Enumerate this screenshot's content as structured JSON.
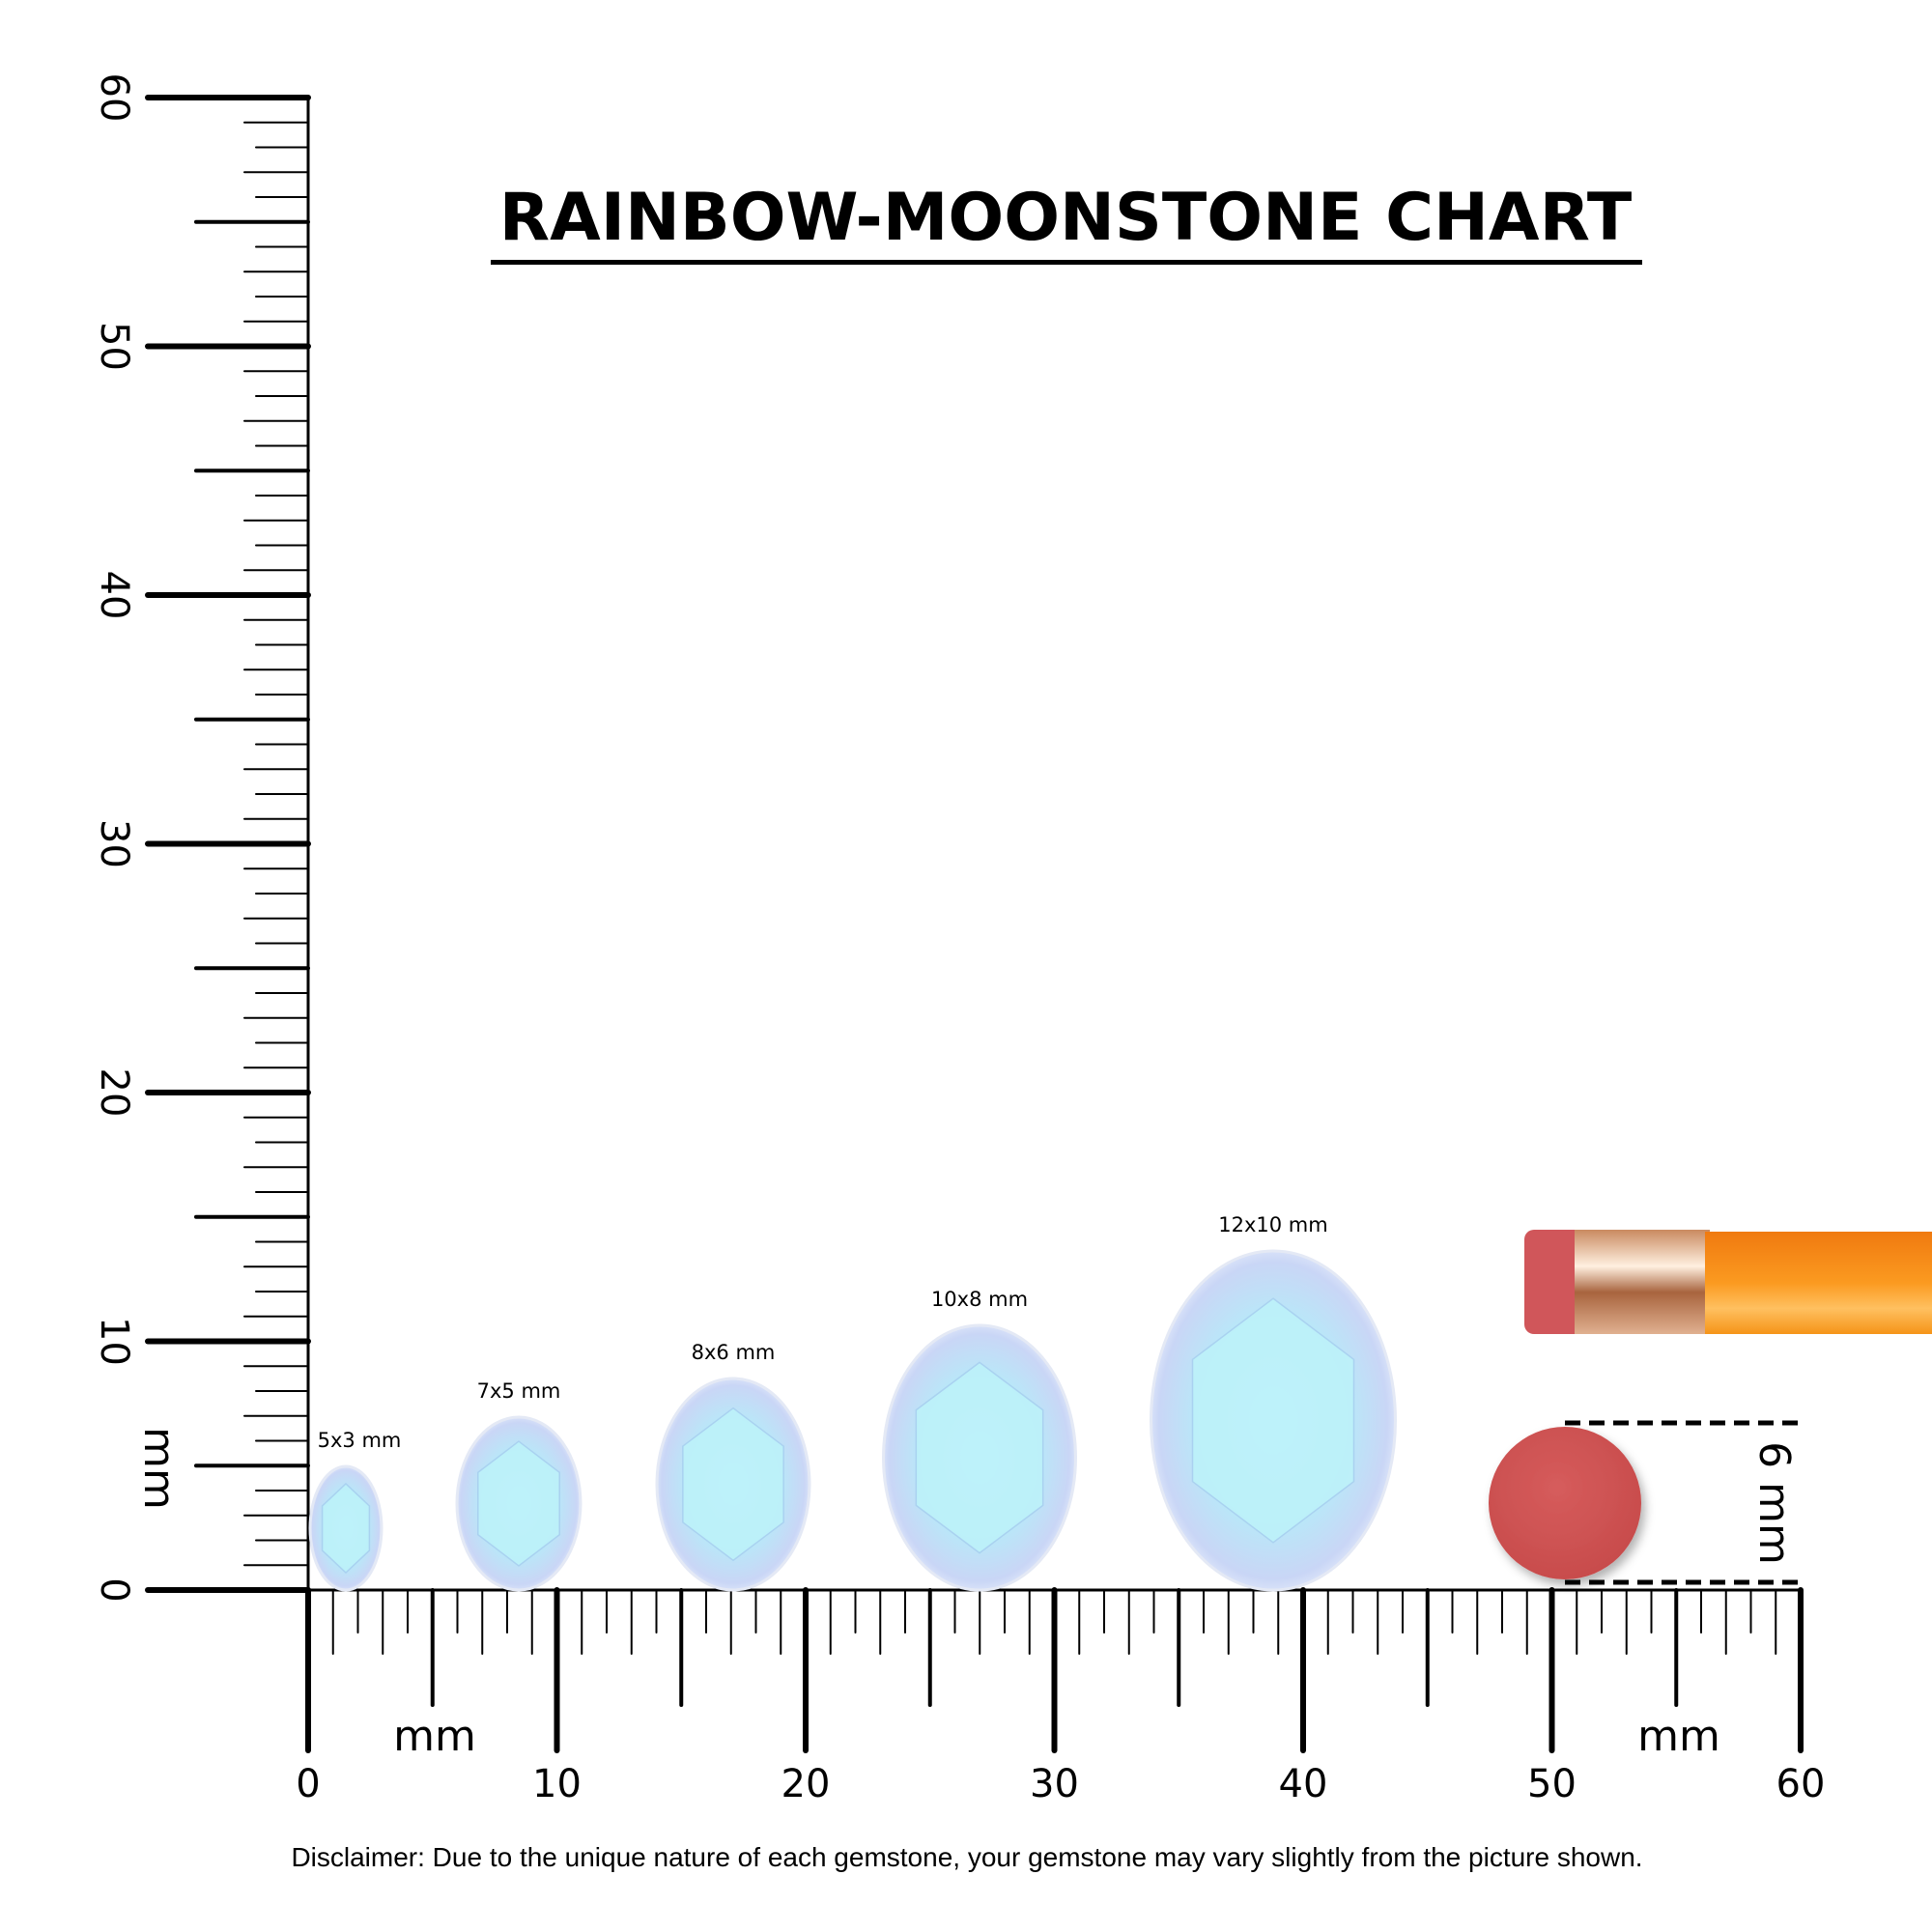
{
  "title": "RAINBOW-MOONSTONE CHART",
  "unit_label": "mm",
  "ruler": {
    "min": 0,
    "max": 60,
    "major_step": 10,
    "labels": [
      "0",
      "10",
      "20",
      "30",
      "40",
      "50",
      "60"
    ]
  },
  "gems": [
    {
      "label": "5x3 mm",
      "length_mm": 5,
      "width_mm": 3
    },
    {
      "label": "7x5 mm",
      "length_mm": 7,
      "width_mm": 5
    },
    {
      "label": "8x6 mm",
      "length_mm": 8,
      "width_mm": 6
    },
    {
      "label": "10x8 mm",
      "length_mm": 10,
      "width_mm": 8
    },
    {
      "label": "12x10 mm",
      "length_mm": 12,
      "width_mm": 10
    }
  ],
  "reference": {
    "label": "6 mm",
    "color": "#d05858",
    "object": "pencil-eraser"
  },
  "colors": {
    "gem_core": "#bff0f8",
    "gem_edge": "#c8d4f4",
    "pencil_body": "#f7941d",
    "ferrule": "#d9a07a"
  },
  "disclaimer": "Disclaimer: Due to the unique nature of each gemstone, your gemstone may vary slightly from the picture shown."
}
